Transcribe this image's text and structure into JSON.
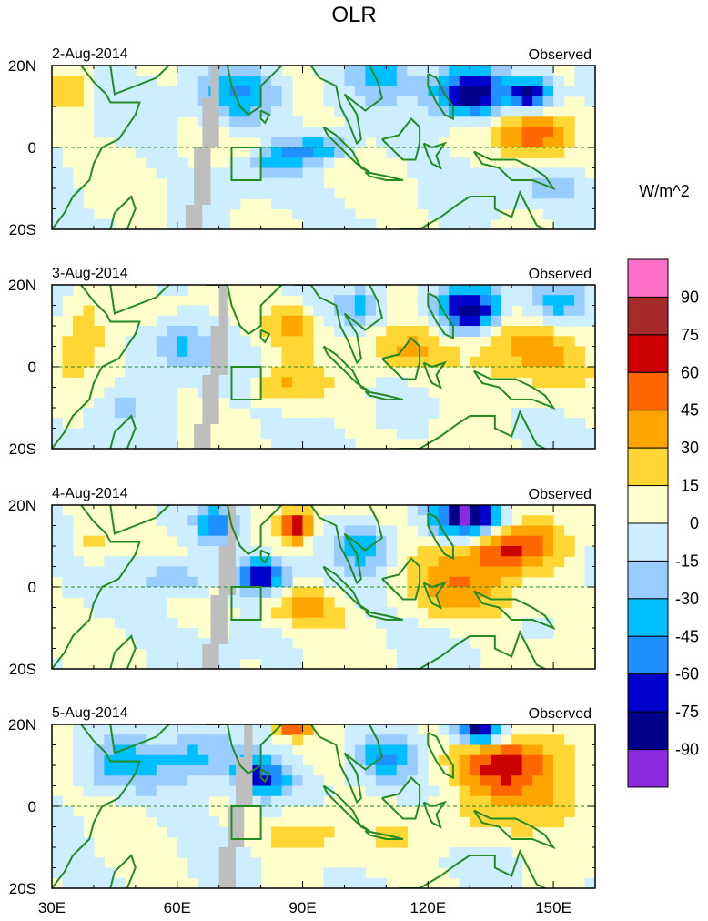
{
  "chart_data": {
    "type": "heatmap",
    "title": "OLR",
    "units_label": "W/m^2",
    "x_range": [
      30,
      160
    ],
    "y_range": [
      -20,
      20
    ],
    "x_ticks": [
      {
        "value": 30,
        "label": "30E"
      },
      {
        "value": 60,
        "label": "60E"
      },
      {
        "value": 90,
        "label": "90E"
      },
      {
        "value": 120,
        "label": "120E"
      },
      {
        "value": 150,
        "label": "150E"
      }
    ],
    "y_ticks": [
      {
        "value": 20,
        "label": "20N"
      },
      {
        "value": 0,
        "label": "0"
      },
      {
        "value": -20,
        "label": "20S"
      }
    ],
    "panels": [
      {
        "date": "2-Aug-2014",
        "label": "Observed"
      },
      {
        "date": "3-Aug-2014",
        "label": "Observed"
      },
      {
        "date": "4-Aug-2014",
        "label": "Observed"
      },
      {
        "date": "5-Aug-2014",
        "label": "Observed"
      }
    ],
    "colorbar": {
      "labels": [
        "90",
        "75",
        "60",
        "45",
        "30",
        "15",
        "0",
        "-15",
        "-30",
        "-45",
        "-60",
        "-75",
        "-90"
      ],
      "colors": [
        "#ff6ec7",
        "#a52a2a",
        "#cc0000",
        "#ff6600",
        "#ffa500",
        "#ffd633",
        "#ffffcc",
        "#cceeff",
        "#99ccff",
        "#00bfff",
        "#1e90ff",
        "#0000cd",
        "#00008b",
        "#8a2be2"
      ]
    }
  }
}
